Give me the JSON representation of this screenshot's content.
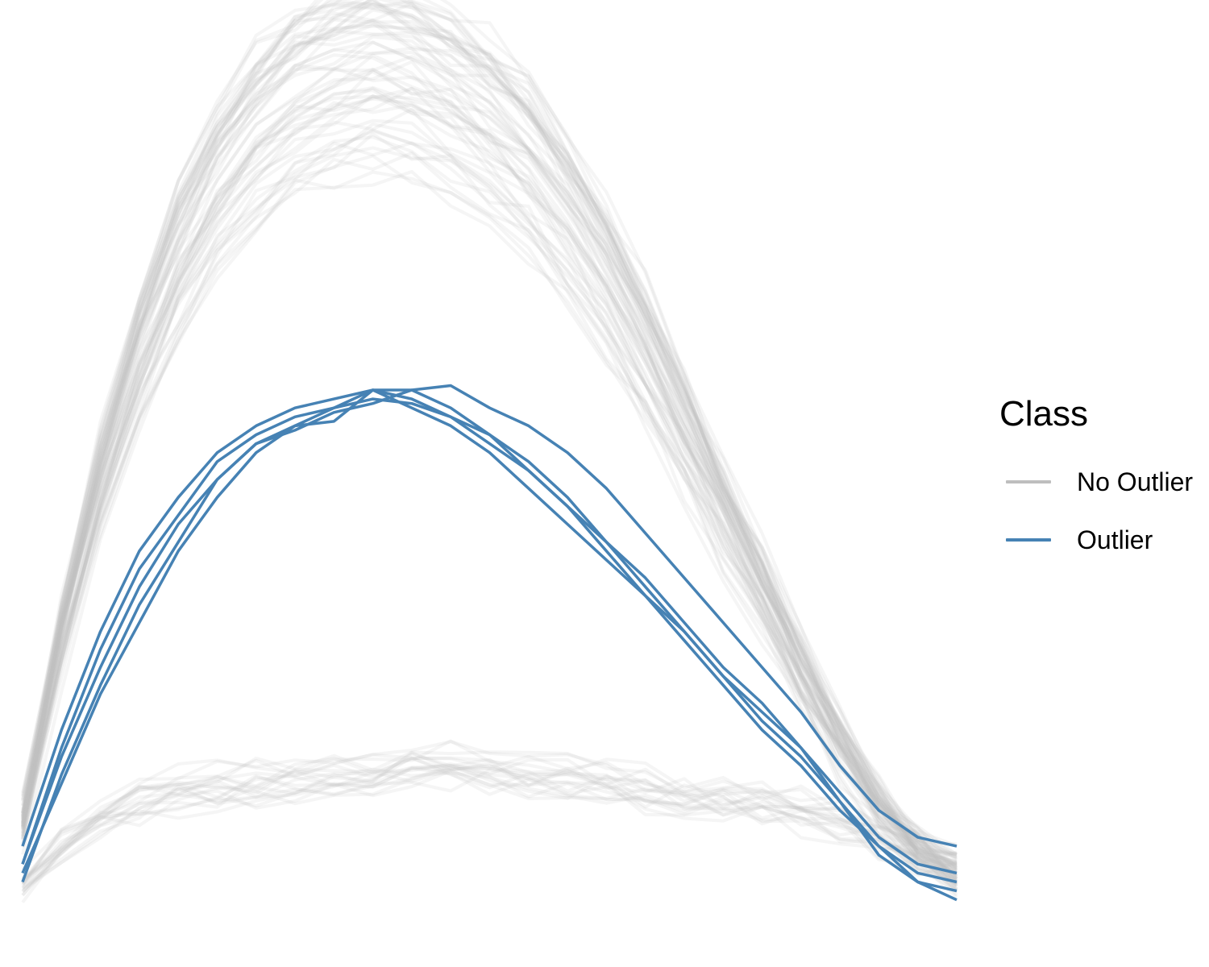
{
  "chart_data": {
    "type": "line",
    "title": "",
    "xlabel": "",
    "ylabel": "",
    "axes_visible": false,
    "grid": false,
    "x": [
      0,
      1,
      2,
      3,
      4,
      5,
      6,
      7,
      8,
      9,
      10,
      11,
      12,
      13,
      14,
      15,
      16,
      17,
      18,
      19,
      20,
      21,
      22,
      23,
      24
    ],
    "xlim": [
      0,
      24
    ],
    "ylim": [
      0,
      1
    ],
    "legend": {
      "title": "Class",
      "position": "right",
      "entries": [
        {
          "label": "No Outlier",
          "color": "#bebebe"
        },
        {
          "label": "Outlier",
          "color": "#4682b4"
        }
      ]
    },
    "groups": {
      "no_outlier_high": {
        "description_count": 60,
        "mean": [
          0.12,
          0.33,
          0.5,
          0.64,
          0.75,
          0.83,
          0.89,
          0.93,
          0.95,
          0.96,
          0.95,
          0.93,
          0.9,
          0.86,
          0.8,
          0.73,
          0.65,
          0.56,
          0.47,
          0.38,
          0.29,
          0.21,
          0.14,
          0.09,
          0.06
        ],
        "spread": 0.04
      },
      "no_outlier_low": {
        "description_count": 20,
        "mean": [
          0.05,
          0.09,
          0.12,
          0.14,
          0.15,
          0.155,
          0.16,
          0.165,
          0.17,
          0.175,
          0.18,
          0.18,
          0.175,
          0.17,
          0.165,
          0.16,
          0.155,
          0.15,
          0.145,
          0.14,
          0.13,
          0.12,
          0.1,
          0.08,
          0.07
        ],
        "spread": 0.035
      }
    },
    "series": [
      {
        "name": "Outlier",
        "values": [
          0.07,
          0.2,
          0.31,
          0.4,
          0.46,
          0.52,
          0.55,
          0.57,
          0.58,
          0.59,
          0.585,
          0.57,
          0.55,
          0.52,
          0.48,
          0.43,
          0.38,
          0.33,
          0.28,
          0.23,
          0.19,
          0.14,
          0.09,
          0.05,
          0.04
        ]
      },
      {
        "name": "Outlier",
        "values": [
          0.09,
          0.22,
          0.33,
          0.42,
          0.48,
          0.53,
          0.56,
          0.58,
          0.59,
          0.6,
          0.59,
          0.57,
          0.54,
          0.51,
          0.47,
          0.42,
          0.37,
          0.32,
          0.27,
          0.22,
          0.18,
          0.13,
          0.09,
          0.06,
          0.05
        ]
      },
      {
        "name": "Outlier",
        "values": [
          0.05,
          0.17,
          0.27,
          0.36,
          0.43,
          0.5,
          0.54,
          0.56,
          0.565,
          0.6,
          0.6,
          0.58,
          0.55,
          0.51,
          0.47,
          0.43,
          0.39,
          0.34,
          0.29,
          0.25,
          0.2,
          0.14,
          0.08,
          0.05,
          0.03
        ]
      },
      {
        "name": "Outlier",
        "values": [
          0.07,
          0.19,
          0.29,
          0.38,
          0.45,
          0.5,
          0.54,
          0.555,
          0.575,
          0.585,
          0.6,
          0.605,
          0.58,
          0.56,
          0.53,
          0.49,
          0.44,
          0.39,
          0.34,
          0.29,
          0.24,
          0.18,
          0.13,
          0.1,
          0.09
        ]
      },
      {
        "name": "Outlier",
        "values": [
          0.06,
          0.16,
          0.26,
          0.34,
          0.42,
          0.48,
          0.53,
          0.56,
          0.58,
          0.6,
          0.58,
          0.56,
          0.53,
          0.49,
          0.45,
          0.41,
          0.37,
          0.33,
          0.28,
          0.24,
          0.2,
          0.15,
          0.1,
          0.07,
          0.06
        ]
      }
    ]
  }
}
